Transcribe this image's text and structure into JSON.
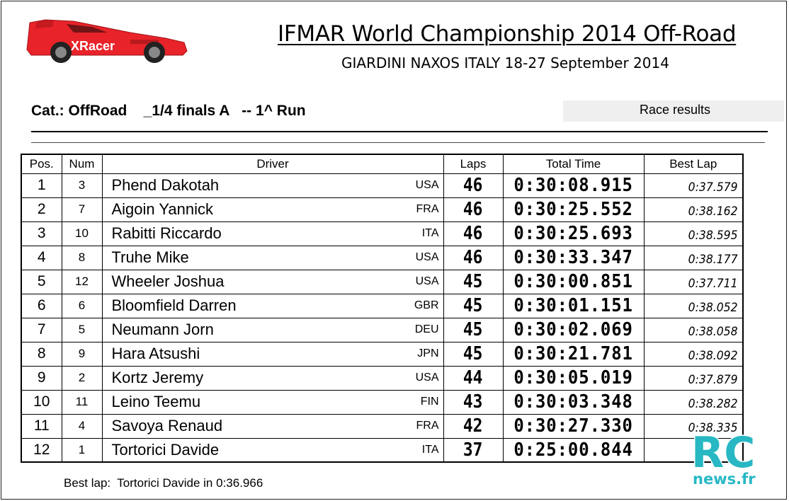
{
  "header": {
    "logo_text": "XRacer",
    "title": "IFMAR World Championship 2014 Off-Road",
    "subtitle": "GIARDINI NAXOS ITALY 18-27 September 2014"
  },
  "category": {
    "cat": "Cat.: OffRoad",
    "final": "_1/4 finals A",
    "run": "-- 1^ Run",
    "results_label": "Race results"
  },
  "table": {
    "columns": [
      "Pos.",
      "Num",
      "Driver",
      "Laps",
      "Total Time",
      "Best Lap"
    ],
    "rows": [
      {
        "pos": "1",
        "num": "3",
        "driver": "Phend Dakotah",
        "nat": "USA",
        "laps": "46",
        "time": "0:30:08.915",
        "best": "0:37.579"
      },
      {
        "pos": "2",
        "num": "7",
        "driver": "Aigoin Yannick",
        "nat": "FRA",
        "laps": "46",
        "time": "0:30:25.552",
        "best": "0:38.162"
      },
      {
        "pos": "3",
        "num": "10",
        "driver": "Rabitti Riccardo",
        "nat": "ITA",
        "laps": "46",
        "time": "0:30:25.693",
        "best": "0:38.595"
      },
      {
        "pos": "4",
        "num": "8",
        "driver": "Truhe Mike",
        "nat": "USA",
        "laps": "46",
        "time": "0:30:33.347",
        "best": "0:38.177"
      },
      {
        "pos": "5",
        "num": "12",
        "driver": "Wheeler Joshua",
        "nat": "USA",
        "laps": "45",
        "time": "0:30:00.851",
        "best": "0:37.711"
      },
      {
        "pos": "6",
        "num": "6",
        "driver": "Bloomfield Darren",
        "nat": "GBR",
        "laps": "45",
        "time": "0:30:01.151",
        "best": "0:38.052"
      },
      {
        "pos": "7",
        "num": "5",
        "driver": "Neumann Jorn",
        "nat": "DEU",
        "laps": "45",
        "time": "0:30:02.069",
        "best": "0:38.058"
      },
      {
        "pos": "8",
        "num": "9",
        "driver": "Hara Atsushi",
        "nat": "JPN",
        "laps": "45",
        "time": "0:30:21.781",
        "best": "0:38.092"
      },
      {
        "pos": "9",
        "num": "2",
        "driver": "Kortz Jeremy",
        "nat": "USA",
        "laps": "44",
        "time": "0:30:05.019",
        "best": "0:37.879"
      },
      {
        "pos": "10",
        "num": "11",
        "driver": "Leino Teemu",
        "nat": "FIN",
        "laps": "43",
        "time": "0:30:03.348",
        "best": "0:38.282"
      },
      {
        "pos": "11",
        "num": "4",
        "driver": "Savoya Renaud",
        "nat": "FRA",
        "laps": "42",
        "time": "0:30:27.330",
        "best": "0:38.335"
      },
      {
        "pos": "12",
        "num": "1",
        "driver": "Tortorici Davide",
        "nat": "ITA",
        "laps": "37",
        "time": "0:25:00.844",
        "best": ""
      }
    ]
  },
  "footer": {
    "best_lap": "Best lap:  Tortorici Davide in 0:36.966"
  },
  "watermark": {
    "line1": "RC",
    "line2": "news.fr"
  },
  "colors": {
    "logo_car": "#e8232a",
    "watermark": "#27b8c4"
  }
}
